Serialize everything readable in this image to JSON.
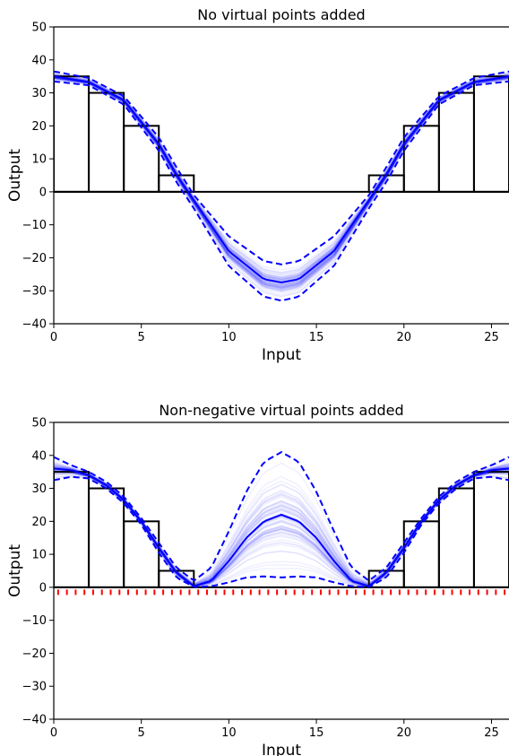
{
  "chart_data": [
    {
      "type": "line",
      "title": "No virtual points added",
      "xlabel": "Input",
      "ylabel": "Output",
      "xlim": [
        0,
        26
      ],
      "ylim": [
        -40,
        50
      ],
      "xticks": [
        0,
        5,
        10,
        15,
        20,
        25
      ],
      "yticks": [
        -40,
        -30,
        -20,
        -10,
        0,
        10,
        20,
        30,
        40,
        50
      ],
      "grid": false,
      "histogram": {
        "bins": [
          [
            0,
            2
          ],
          [
            2,
            4
          ],
          [
            4,
            6
          ],
          [
            6,
            8
          ],
          [
            8,
            10
          ],
          [
            10,
            12
          ],
          [
            12,
            14
          ],
          [
            14,
            16
          ],
          [
            16,
            18
          ],
          [
            18,
            20
          ],
          [
            20,
            22
          ],
          [
            22,
            24
          ],
          [
            24,
            26
          ]
        ],
        "values": [
          35,
          30,
          20,
          5,
          0,
          0,
          0,
          0,
          0,
          5,
          20,
          30,
          35
        ],
        "color": "#000000"
      },
      "mean_curve": {
        "x": [
          0,
          2,
          4,
          6,
          7,
          8,
          10,
          12,
          13,
          14,
          16,
          18,
          19,
          20,
          22,
          24,
          26
        ],
        "y": [
          35,
          33.3,
          27.8,
          14.5,
          5.3,
          -2.6,
          -18,
          -26.5,
          -27.5,
          -26.5,
          -18,
          -2.6,
          5.3,
          14.5,
          27.8,
          33.3,
          35
        ],
        "color": "#0000ff"
      },
      "upper_band": {
        "x": [
          0,
          2,
          4,
          6,
          7,
          8,
          10,
          12,
          13,
          14,
          16,
          18,
          19,
          20,
          22,
          24,
          26
        ],
        "y": [
          36.5,
          34.5,
          29,
          16.5,
          7.5,
          -1,
          -13.5,
          -21,
          -22,
          -21,
          -13.5,
          -1,
          7.5,
          16.5,
          29,
          34.5,
          36.5
        ],
        "color": "#0000ff"
      },
      "lower_band": {
        "x": [
          0,
          2,
          4,
          6,
          7,
          8,
          10,
          12,
          13,
          14,
          16,
          18,
          19,
          20,
          22,
          24,
          26
        ],
        "y": [
          33.5,
          32.3,
          26.5,
          12.5,
          3,
          -5,
          -22.5,
          -31.8,
          -33,
          -31.8,
          -22.5,
          -5,
          3,
          12.5,
          26.5,
          32.3,
          33.5
        ],
        "color": "#0000ff"
      },
      "virtual_points": null
    },
    {
      "type": "line",
      "title": "Non-negative virtual points added",
      "xlabel": "Input",
      "ylabel": "Output",
      "xlim": [
        0,
        26
      ],
      "ylim": [
        -40,
        50
      ],
      "xticks": [
        0,
        5,
        10,
        15,
        20,
        25
      ],
      "yticks": [
        -40,
        -30,
        -20,
        -10,
        0,
        10,
        20,
        30,
        40,
        50
      ],
      "grid": false,
      "histogram": {
        "bins": [
          [
            0,
            2
          ],
          [
            2,
            4
          ],
          [
            4,
            6
          ],
          [
            6,
            8
          ],
          [
            8,
            10
          ],
          [
            10,
            12
          ],
          [
            12,
            14
          ],
          [
            14,
            16
          ],
          [
            16,
            18
          ],
          [
            18,
            20
          ],
          [
            20,
            22
          ],
          [
            22,
            24
          ],
          [
            24,
            26
          ]
        ],
        "values": [
          35,
          30,
          20,
          5,
          0,
          0,
          0,
          0,
          0,
          5,
          20,
          30,
          35
        ],
        "color": "#000000"
      },
      "mean_curve": {
        "x": [
          0,
          1,
          2,
          3,
          4,
          5,
          6,
          7,
          8,
          9,
          10,
          11,
          12,
          13,
          14,
          15,
          16,
          17,
          18,
          19,
          20,
          21,
          22,
          23,
          24,
          25,
          26
        ],
        "y": [
          36,
          35.5,
          34,
          31,
          26.5,
          20,
          12,
          4.5,
          0.3,
          2,
          8,
          15,
          20,
          22,
          20,
          15,
          8,
          2,
          0.3,
          4.5,
          12,
          20,
          26.5,
          31,
          34,
          35.5,
          36
        ],
        "color": "#0000ff"
      },
      "upper_band": {
        "x": [
          0,
          1,
          2,
          3,
          4,
          5,
          6,
          7,
          8,
          9,
          10,
          11,
          12,
          13,
          14,
          15,
          16,
          17,
          18,
          19,
          20,
          21,
          22,
          23,
          24,
          25,
          26
        ],
        "y": [
          39.5,
          37,
          35,
          32,
          27.5,
          21,
          13.5,
          6,
          2,
          6,
          17,
          29,
          38,
          41,
          38,
          29,
          17,
          6,
          2,
          6,
          13.5,
          21,
          27.5,
          32,
          35,
          37,
          39.5
        ],
        "color": "#0000ff"
      },
      "lower_band": {
        "x": [
          0,
          1,
          2,
          3,
          4,
          5,
          6,
          7,
          8,
          9,
          10,
          11,
          12,
          13,
          14,
          15,
          16,
          17,
          18,
          19,
          20,
          21,
          22,
          23,
          24,
          25,
          26
        ],
        "y": [
          32.5,
          33.5,
          33,
          30,
          25.5,
          19,
          10.5,
          3,
          0.1,
          0.3,
          1.5,
          3,
          3.3,
          3,
          3.3,
          3,
          1.5,
          0.3,
          0.1,
          3,
          10.5,
          19,
          25.5,
          30,
          33,
          33.5,
          32.5
        ],
        "color": "#0000ff"
      },
      "virtual_points": {
        "x_start": 0.25,
        "x_end": 25.75,
        "step": 0.5,
        "y": -1.5,
        "color": "#ff0000"
      }
    }
  ]
}
